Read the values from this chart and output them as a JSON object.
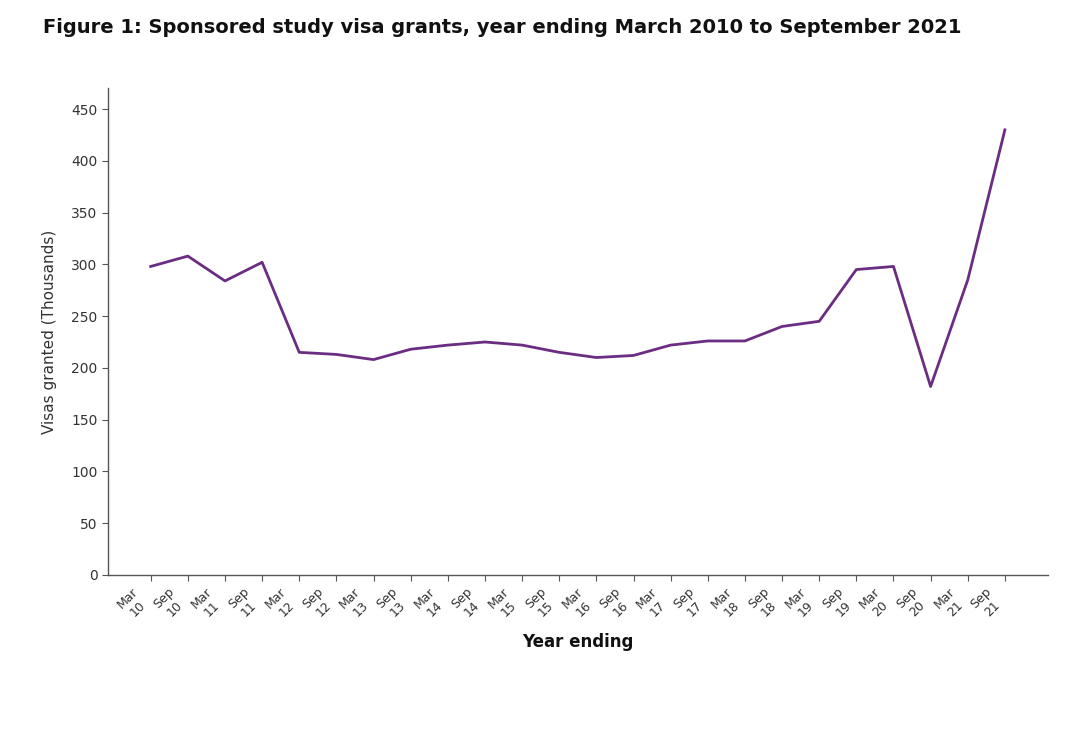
{
  "title": "Figure 1: Sponsored study visa grants, year ending March 2010 to September 2021",
  "xlabel": "Year ending",
  "ylabel": "Visas granted (Thousands)",
  "line_color": "#6B2D82",
  "background_color": "#ffffff",
  "ylim": [
    0,
    470
  ],
  "yticks": [
    0,
    50,
    100,
    150,
    200,
    250,
    300,
    350,
    400,
    450
  ],
  "x_labels": [
    "Mar\n10",
    "Sep\n10",
    "Mar\n11",
    "Sep\n11",
    "Mar\n12",
    "Sep\n12",
    "Mar\n13",
    "Sep\n13",
    "Mar\n14",
    "Sep\n14",
    "Mar\n15",
    "Sep\n15",
    "Mar\n16",
    "Sep\n16",
    "Mar\n17",
    "Sep\n17",
    "Mar\n18",
    "Sep\n18",
    "Mar\n19",
    "Sep\n19",
    "Mar\n20",
    "Sep\n20",
    "Mar\n21",
    "Sep\n21"
  ],
  "values": [
    298,
    308,
    284,
    302,
    215,
    213,
    208,
    218,
    222,
    225,
    222,
    215,
    210,
    212,
    222,
    226,
    226,
    240,
    245,
    295,
    298,
    182,
    285,
    430
  ]
}
